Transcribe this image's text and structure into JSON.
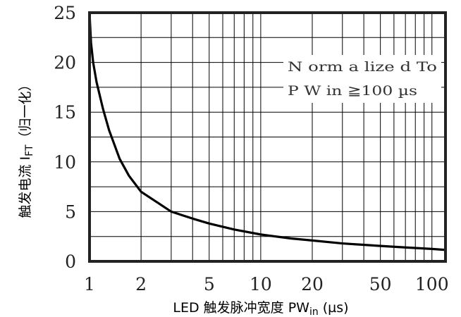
{
  "chart_data": {
    "type": "line",
    "xscale": "log",
    "xlim": [
      1,
      120
    ],
    "ylim": [
      0,
      25
    ],
    "grid": true,
    "xlabel": {
      "prefix": "LED 触发脉冲宽度  PW",
      "sub": "in",
      "suffix": " (µs)"
    },
    "ylabel": {
      "prefix": "触发电流  I",
      "sub": "FT",
      "suffix": "（归一化）"
    },
    "xticks": [
      {
        "value": 1,
        "label": "1"
      },
      {
        "value": 2,
        "label": "2"
      },
      {
        "value": 5,
        "label": "5"
      },
      {
        "value": 10,
        "label": "10"
      },
      {
        "value": 20,
        "label": "20"
      },
      {
        "value": 50,
        "label": "50"
      },
      {
        "value": 100,
        "label": "100"
      }
    ],
    "yticks": [
      {
        "value": 0,
        "label": "0"
      },
      {
        "value": 5,
        "label": "5"
      },
      {
        "value": 10,
        "label": "10"
      },
      {
        "value": 15,
        "label": "15"
      },
      {
        "value": 20,
        "label": "20"
      },
      {
        "value": 25,
        "label": "25"
      }
    ],
    "annotation": [
      "N orm a lize d  To",
      "P W  in ≧100  µs"
    ],
    "series": [
      {
        "x": [
          1.0,
          1.02,
          1.05,
          1.1,
          1.2,
          1.3,
          1.5,
          1.7,
          2.0,
          2.5,
          3.0,
          4.0,
          5.0,
          7.0,
          10.0,
          15.0,
          20.0,
          30.0,
          50.0,
          70.0,
          100.0,
          120.0
        ],
        "y": [
          25.0,
          22.0,
          20.0,
          18.0,
          15.3,
          13.2,
          10.3,
          8.6,
          7.0,
          5.9,
          5.0,
          4.3,
          3.8,
          3.2,
          2.7,
          2.3,
          2.1,
          1.8,
          1.55,
          1.4,
          1.25,
          1.15
        ]
      }
    ],
    "colors": {
      "line": "#000000",
      "grid": "#000000",
      "frame": "#222222",
      "annotation_box": "#ffffff"
    }
  }
}
